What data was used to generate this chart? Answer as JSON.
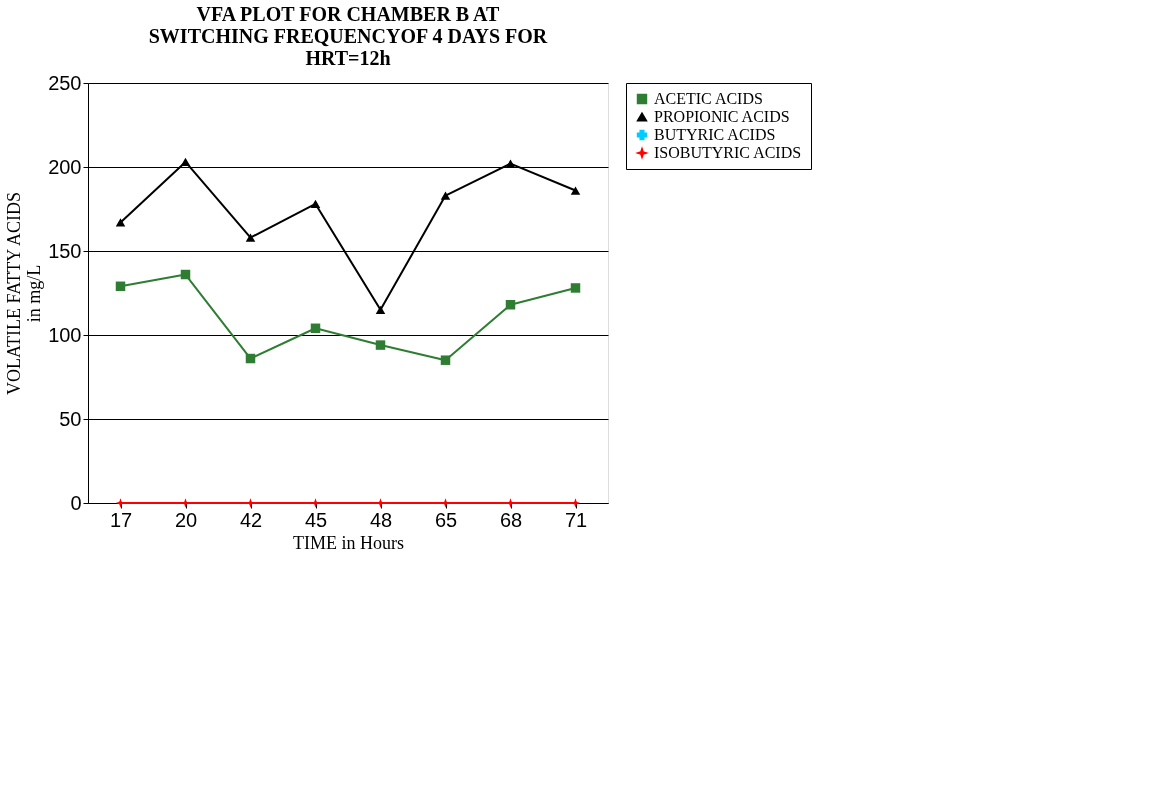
{
  "chart_data": {
    "type": "line",
    "title": "VFA PLOT FOR CHAMBER B AT\nSWITCHING FREQUENCYOF 4 DAYS FOR\nHRT=12h",
    "xlabel": "TIME in Hours",
    "ylabel": "VOLATILE FATTY ACIDS\nin mg/L",
    "categories": [
      "17",
      "20",
      "42",
      "45",
      "48",
      "65",
      "68",
      "71"
    ],
    "series": [
      {
        "name": "ACETIC ACIDS",
        "color": "#2e7d32",
        "marker": "square",
        "values": [
          129,
          136,
          86,
          104,
          94,
          85,
          118,
          128
        ]
      },
      {
        "name": "PROPIONIC ACIDS",
        "color": "#000000",
        "marker": "triangle",
        "values": [
          167,
          203,
          158,
          178,
          115,
          183,
          202,
          186
        ]
      },
      {
        "name": "BUTYRIC ACIDS",
        "color": "#00ccff",
        "marker": "cross",
        "values": [
          null,
          null,
          null,
          null,
          null,
          null,
          null,
          null
        ]
      },
      {
        "name": "ISOBUTYRIC ACIDS",
        "color": "#ff0000",
        "marker": "star",
        "values": [
          0,
          0,
          0,
          0,
          0,
          0,
          0,
          0
        ]
      }
    ],
    "ylim": [
      0,
      250
    ],
    "yticks": [
      0,
      50,
      100,
      150,
      200,
      250
    ],
    "grid": "y",
    "legend": "right"
  }
}
